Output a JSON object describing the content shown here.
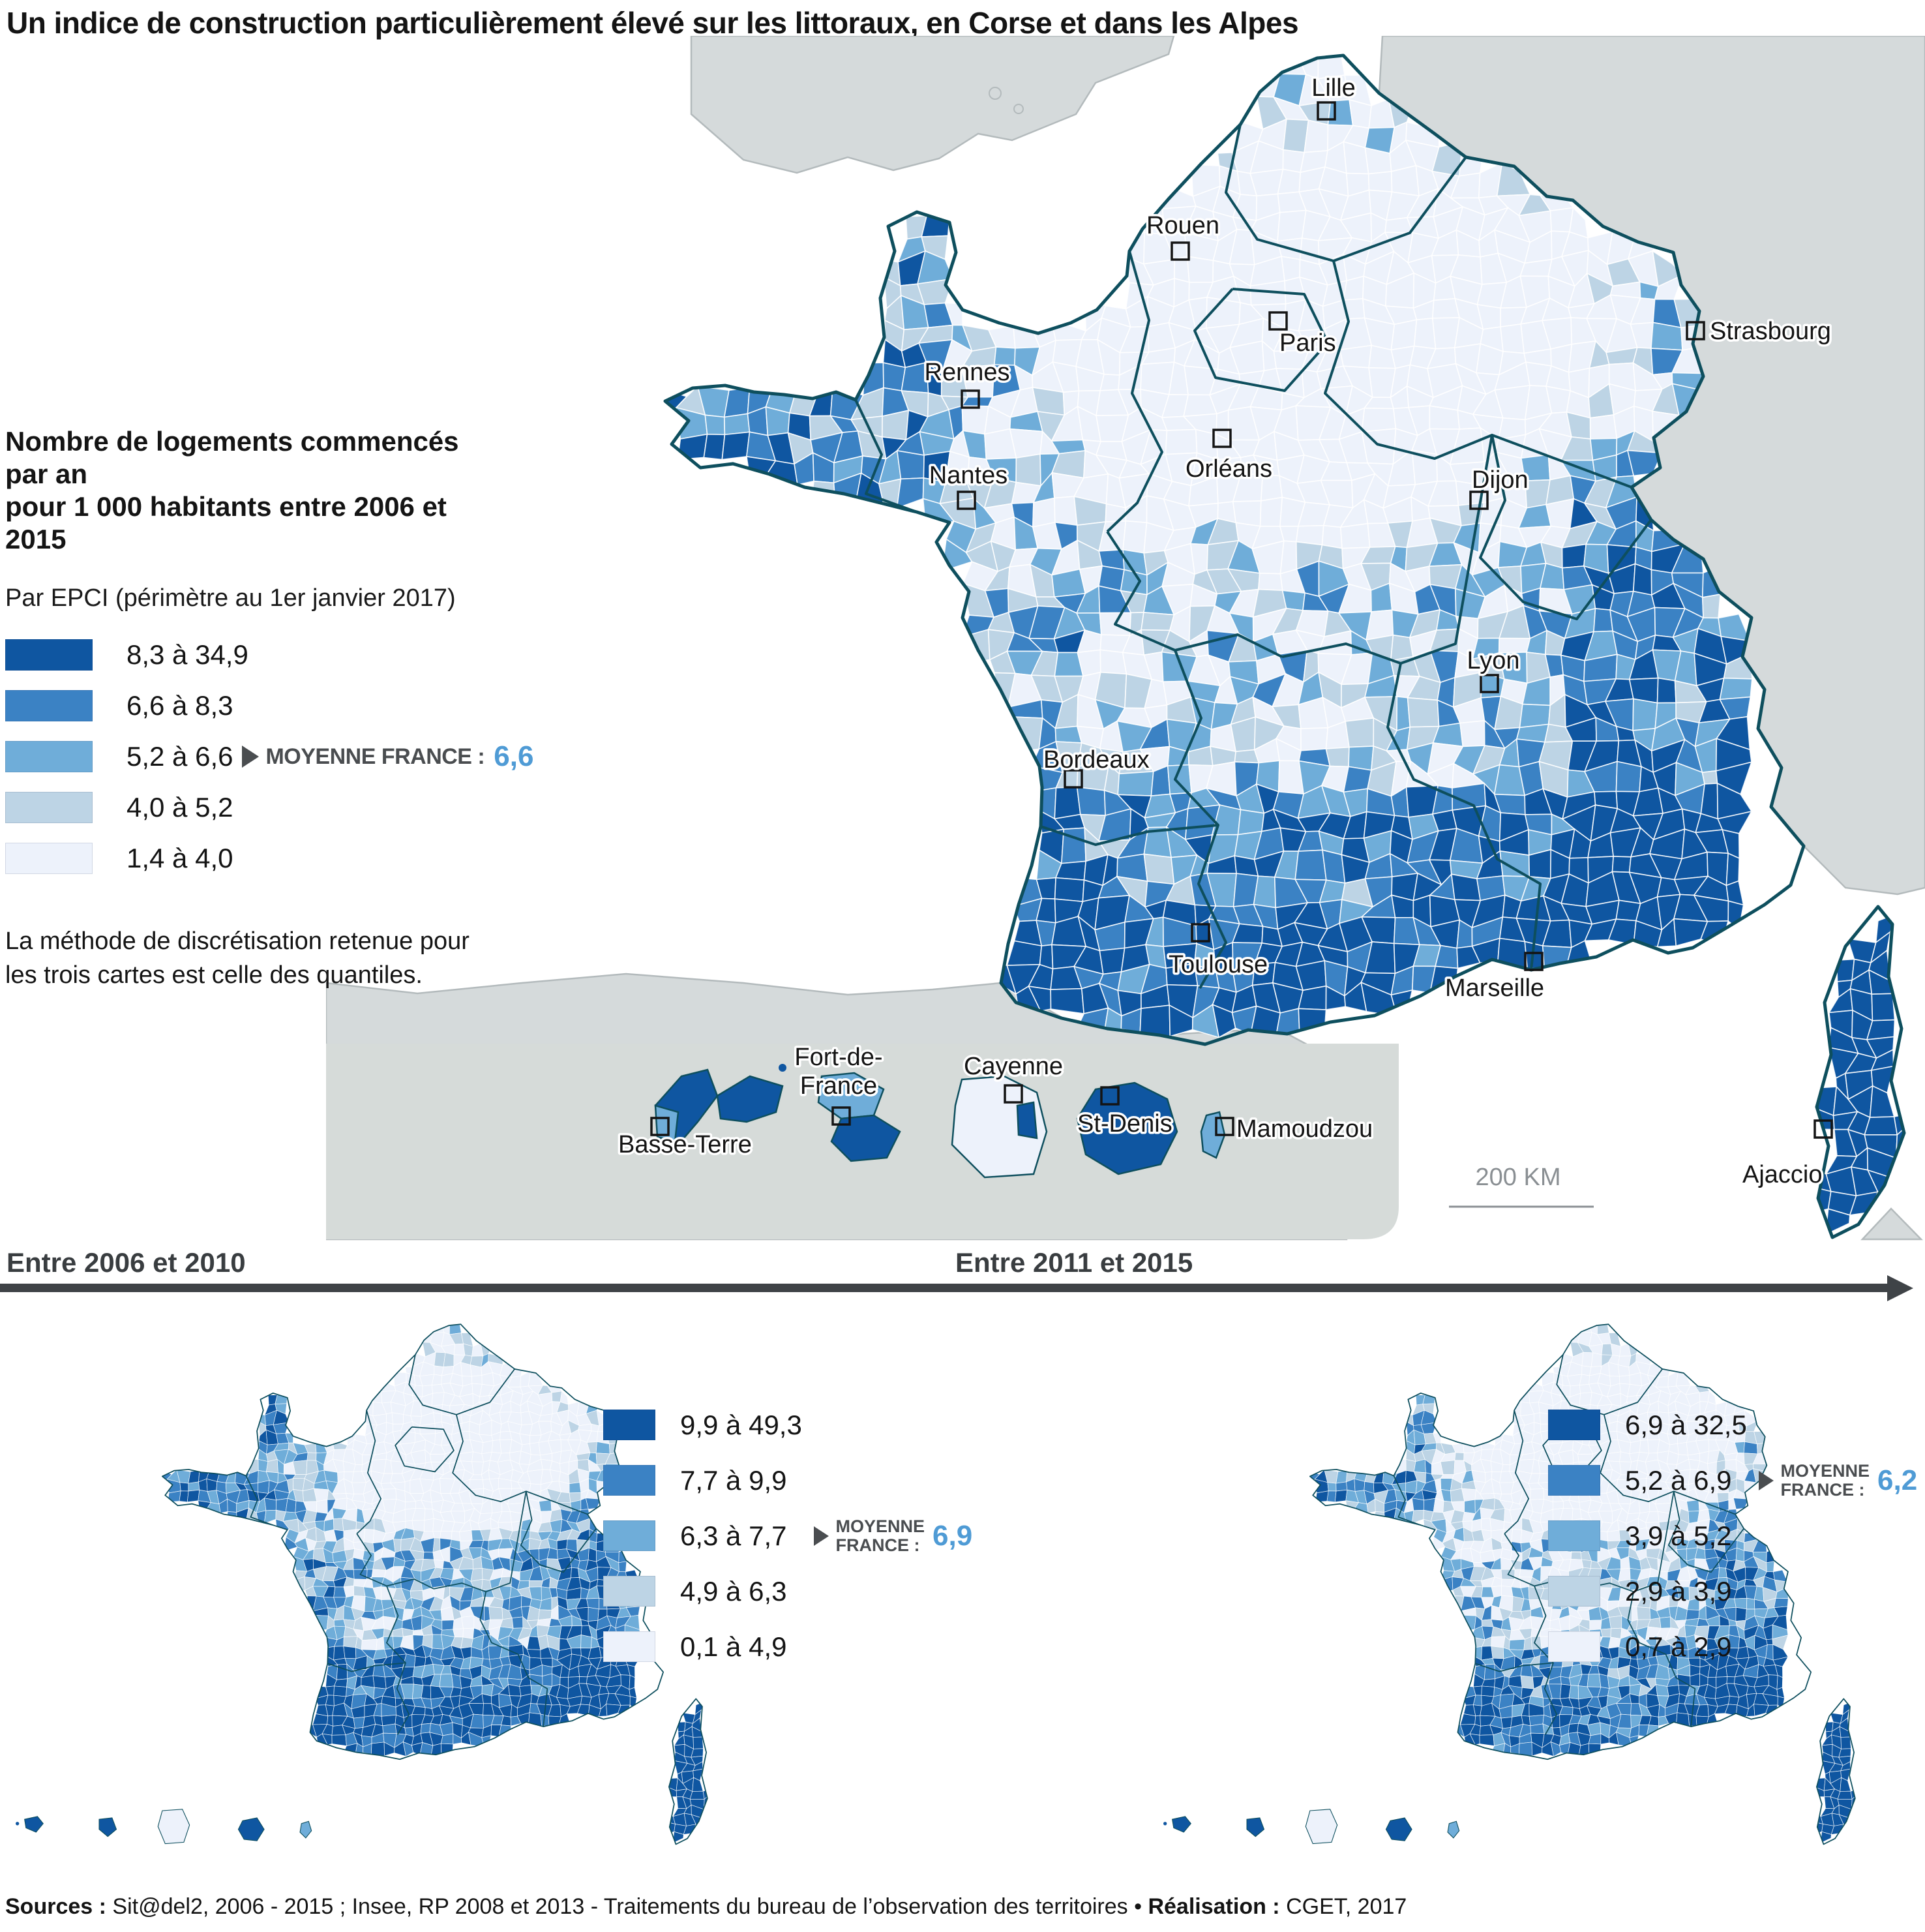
{
  "title": "Un indice de construction particulièrement élevé sur les littoraux, en Corse et dans les Alpes",
  "colors": {
    "classes": [
      "#0f56a1",
      "#3b82c4",
      "#6fadd9",
      "#bdd4e5",
      "#edf2fb"
    ],
    "map_border": "#0e4f5e",
    "epci_border": "#ffffff",
    "neighbor_fill": "#d5dadb",
    "neighbor_border": "#b3babc",
    "inset_fill": "#d6dbd9",
    "average_value_blue": "#4f9bd5",
    "average_label_gray": "#4a4d50",
    "timeline_gray": "#3f4347",
    "scale_gray": "#8a8f93",
    "city_text": "#141414"
  },
  "main_map": {
    "legend": {
      "title_line1": "Nombre de logements commencés par an",
      "title_line2": "pour 1 000 habitants entre 2006 et 2015",
      "subtitle": "Par EPCI (périmètre au 1er janvier 2017)",
      "classes": [
        {
          "label": "8,3 à 34,9"
        },
        {
          "label": "6,6 à 8,3"
        },
        {
          "label": "5,2 à 6,6"
        },
        {
          "label": "4,0 à 5,2"
        },
        {
          "label": "1,4 à 4,0"
        }
      ],
      "average_label": "MOYENNE FRANCE :",
      "average_value": "6,6"
    },
    "note_line1": "La méthode de discrétisation retenue pour",
    "note_line2": "les trois cartes est celle des quantiles.",
    "cities": [
      "Lille",
      "Rouen",
      "Paris",
      "Strasbourg",
      "Rennes",
      "Nantes",
      "Orléans",
      "Dijon",
      "Lyon",
      "Bordeaux",
      "Toulouse",
      "Marseille",
      "Ajaccio"
    ],
    "overseas": [
      "Basse-Terre",
      "Fort-de-France",
      "Cayenne",
      "St-Denis",
      "Mamoudzou"
    ],
    "scale_label": "200 KM"
  },
  "small_maps": [
    {
      "title": "Entre 2006 et 2010",
      "classes": [
        {
          "label": "9,9 à 49,3"
        },
        {
          "label": "7,7 à 9,9"
        },
        {
          "label": "6,3 à 7,7"
        },
        {
          "label": "4,9 à 6,3"
        },
        {
          "label": "0,1 à 4,9"
        }
      ],
      "average_label_line1": "MOYENNE",
      "average_label_line2": "FRANCE :",
      "average_value": "6,9"
    },
    {
      "title": "Entre 2011 et 2015",
      "classes": [
        {
          "label": "6,9 à 32,5"
        },
        {
          "label": "5,2 à 6,9"
        },
        {
          "label": "3,9 à 5,2"
        },
        {
          "label": "2,9 à 3,9"
        },
        {
          "label": "0,7 à 2,9"
        }
      ],
      "average_label_line1": "MOYENNE",
      "average_label_line2": "FRANCE :",
      "average_value": "6,2"
    }
  ],
  "footer": {
    "sources_label": "Sources :",
    "sources_text": " Sit@del2, 2006 - 2015 ; Insee, RP 2008 et 2013 - Traitements du bureau de l’observation des territoires • ",
    "realisation_label": "Réalisation :",
    "realisation_text": " CGET, 2017"
  }
}
